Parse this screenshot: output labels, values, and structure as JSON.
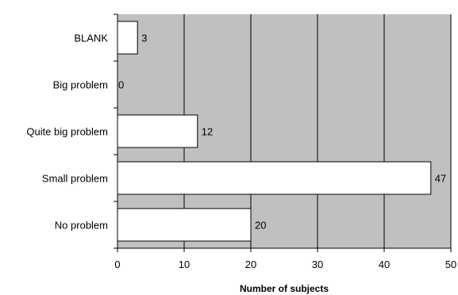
{
  "chart_data": {
    "type": "bar",
    "orientation": "horizontal",
    "categories": [
      "BLANK",
      "Big problem",
      "Quite big problem",
      "Small problem",
      "No problem"
    ],
    "values": [
      3,
      0,
      12,
      47,
      20
    ],
    "data_labels": [
      "3",
      "0",
      "12",
      "47",
      "20"
    ],
    "xlabel": "Number of subjects",
    "ylabel": "",
    "xlim": [
      0,
      50
    ],
    "xticks": [
      "0",
      "10",
      "20",
      "30",
      "40",
      "50"
    ],
    "grid": "vertical",
    "legend": "none",
    "colors": {
      "plot_background": "#c0c0c0",
      "bar_fill": "#ffffff",
      "bar_stroke": "#000000",
      "grid": "#000000"
    }
  }
}
